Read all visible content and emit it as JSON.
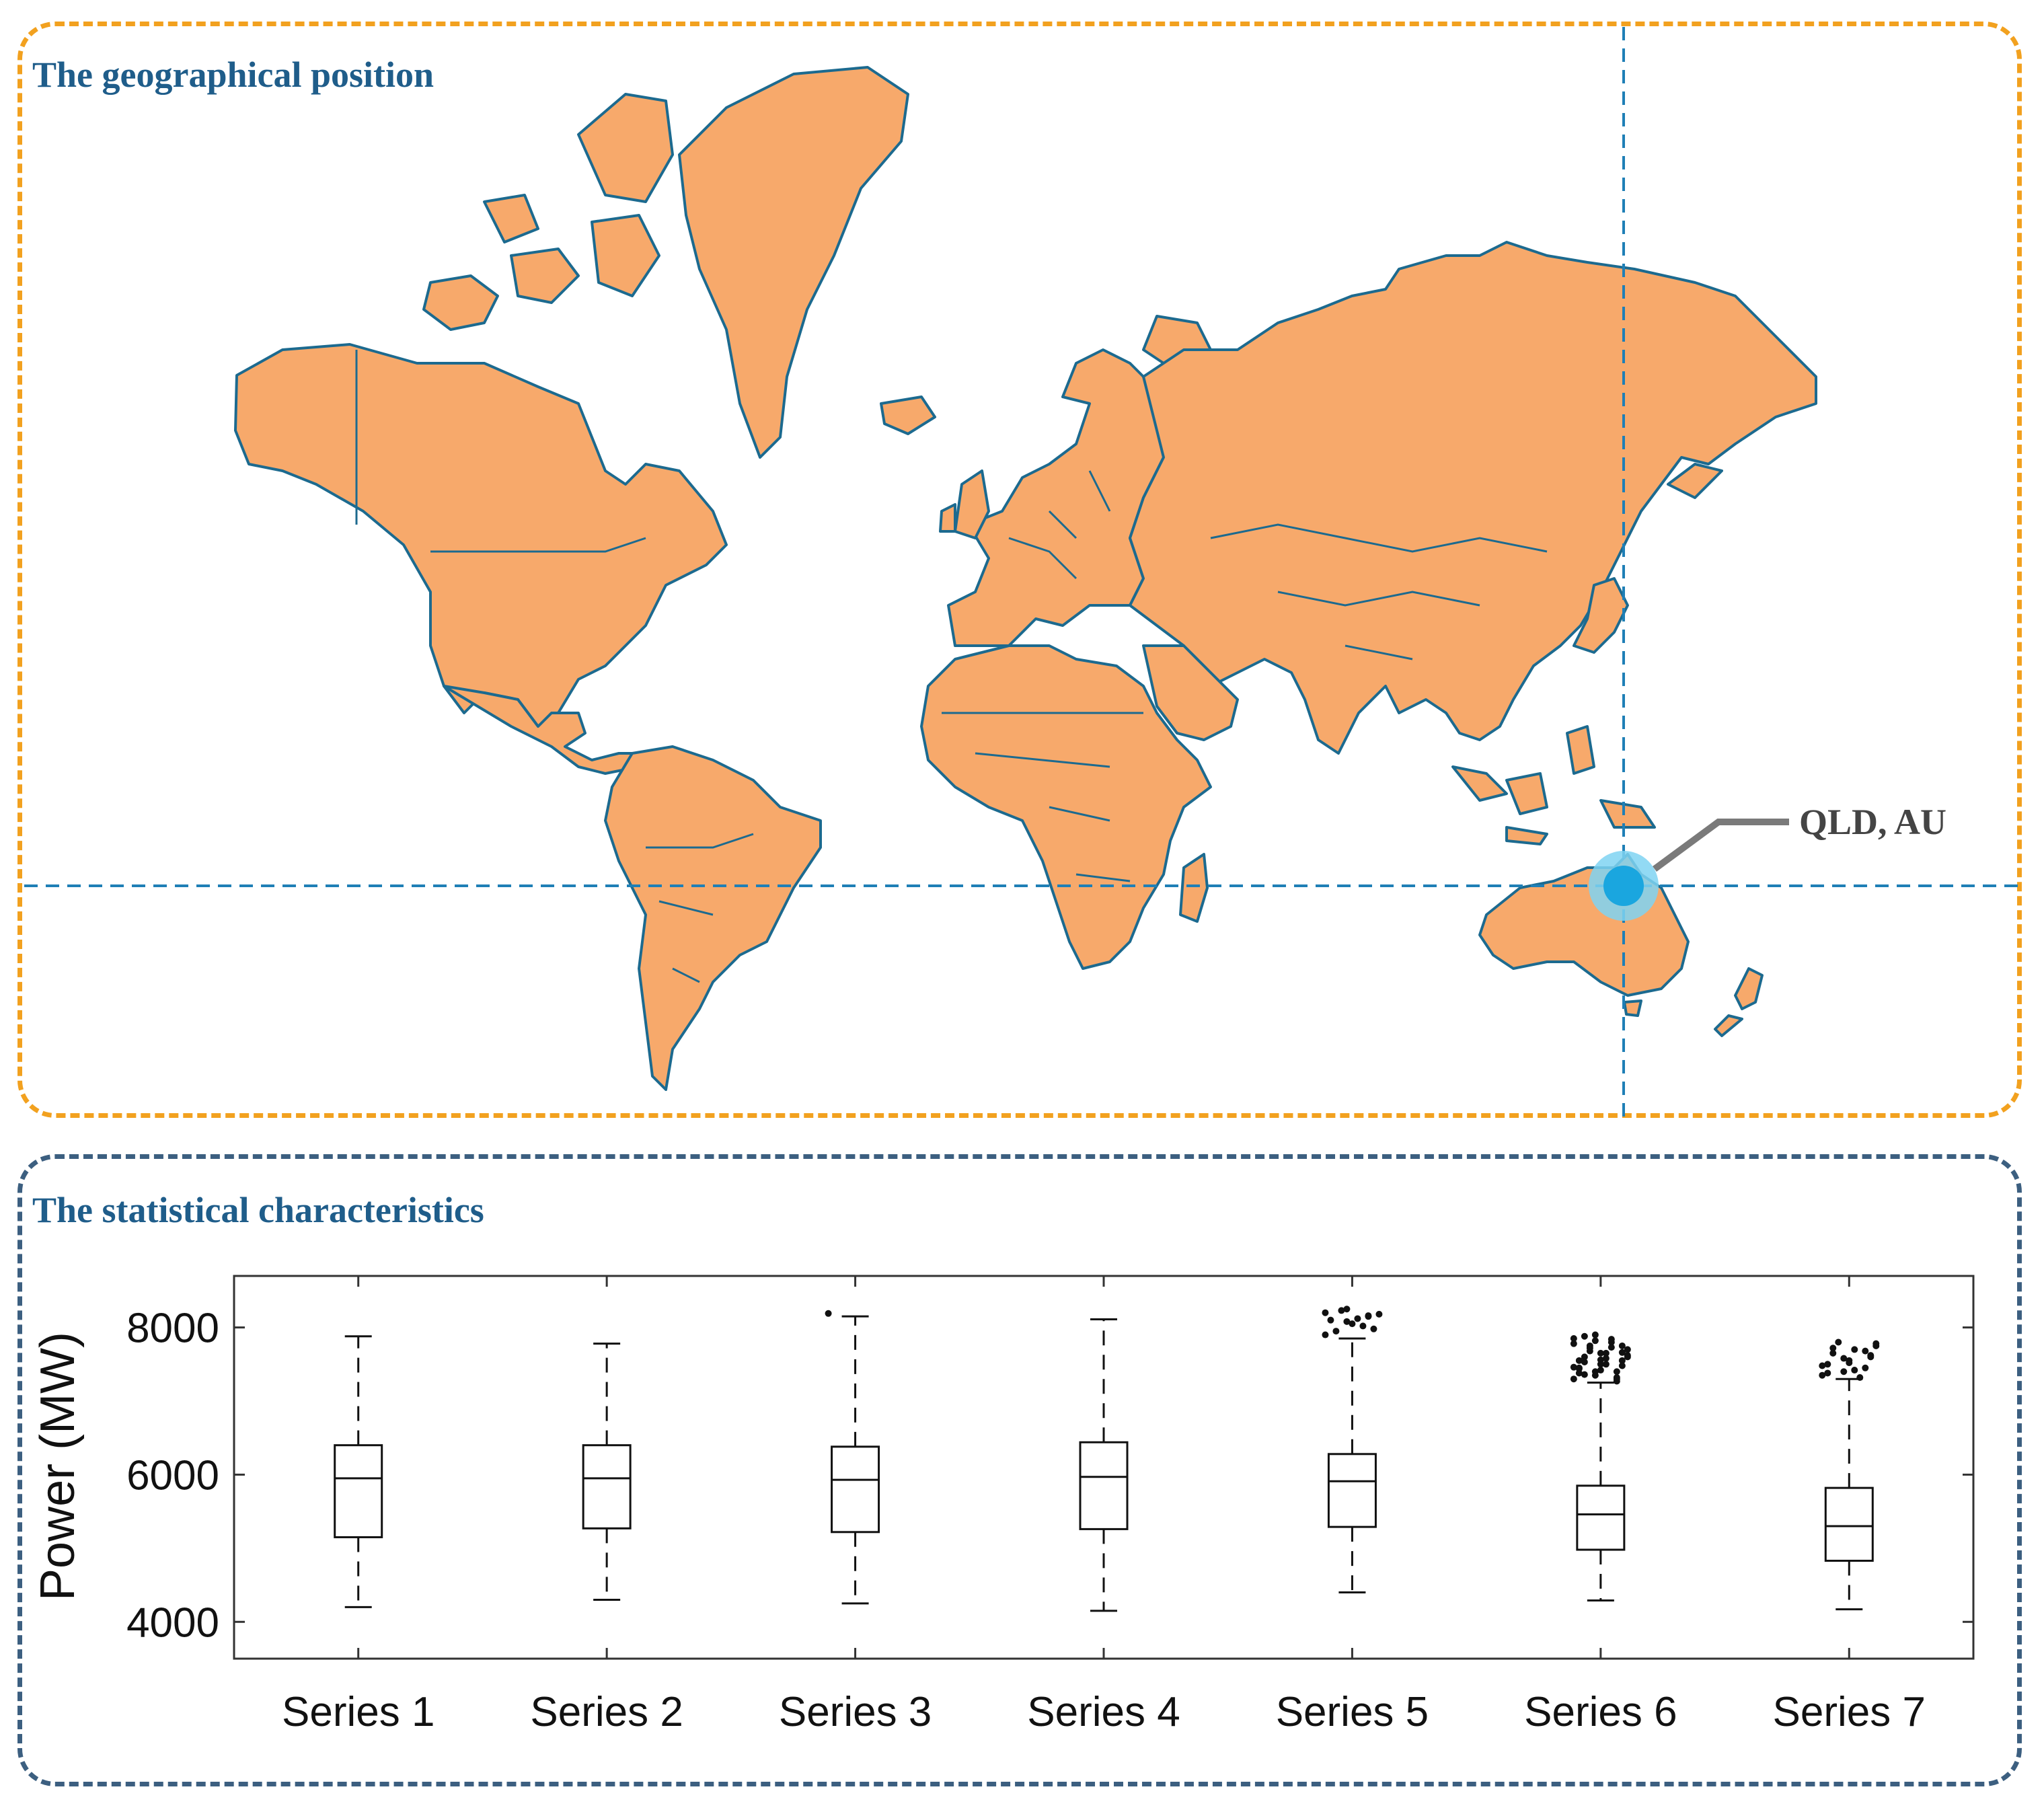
{
  "map_panel": {
    "title": "The geographical position",
    "marker_label": "QLD, AU",
    "land_color": "#f7a96b",
    "border_color": "#1c6a8f",
    "guide_color": "#1f7fb6",
    "marker_color": "#2bb5e6",
    "frame_color": "#f2a11f"
  },
  "stats_panel": {
    "title": "The statistical characteristics",
    "frame_color": "#3c5f80"
  },
  "chart_data": {
    "type": "box",
    "ylabel": "Power (MW)",
    "ylim": [
      3500,
      8700
    ],
    "yticks": [
      4000,
      6000,
      8000
    ],
    "categories": [
      "Series 1",
      "Series 2",
      "Series 3",
      "Series 4",
      "Series 5",
      "Series 6",
      "Series 7"
    ],
    "boxes": [
      {
        "whisker_low": 4200,
        "q1": 5150,
        "median": 5950,
        "q3": 6400,
        "whisker_high": 7880,
        "outliers": []
      },
      {
        "whisker_low": 4300,
        "q1": 5270,
        "median": 5950,
        "q3": 6400,
        "whisker_high": 7780,
        "outliers": []
      },
      {
        "whisker_low": 4250,
        "q1": 5220,
        "median": 5930,
        "q3": 6380,
        "whisker_high": 8150,
        "outliers": [
          8190
        ]
      },
      {
        "whisker_low": 4150,
        "q1": 5260,
        "median": 5970,
        "q3": 6440,
        "whisker_high": 8110,
        "outliers": []
      },
      {
        "whisker_low": 4400,
        "q1": 5290,
        "median": 5910,
        "q3": 6280,
        "whisker_high": 7850,
        "outliers": [
          8200,
          8250,
          8150,
          8100,
          8050,
          7980,
          7950,
          8120,
          8180,
          8230,
          8020,
          7900,
          8080,
          8160
        ]
      },
      {
        "whisker_low": 4290,
        "q1": 4980,
        "median": 5460,
        "q3": 5850,
        "whisker_high": 7250,
        "outliers": [
          7300,
          7350,
          7400,
          7450,
          7500,
          7550,
          7600,
          7650,
          7700,
          7750,
          7800,
          7850,
          7900,
          7320,
          7380,
          7420,
          7480,
          7530,
          7580,
          7620,
          7680,
          7730,
          7780,
          7820,
          7270,
          7440,
          7560,
          7660,
          7360,
          7500,
          7600,
          7720,
          7840,
          7460,
          7400,
          7300,
          7550,
          7650,
          7750,
          7880
        ]
      },
      {
        "whisker_low": 4170,
        "q1": 4830,
        "median": 5300,
        "q3": 5820,
        "whisker_high": 7300,
        "outliers": [
          7350,
          7400,
          7450,
          7500,
          7550,
          7600,
          7650,
          7700,
          7750,
          7800,
          7320,
          7480,
          7580,
          7680,
          7380,
          7520,
          7620,
          7720,
          7420,
          7780
        ]
      }
    ],
    "grid": false,
    "legend": "none"
  }
}
